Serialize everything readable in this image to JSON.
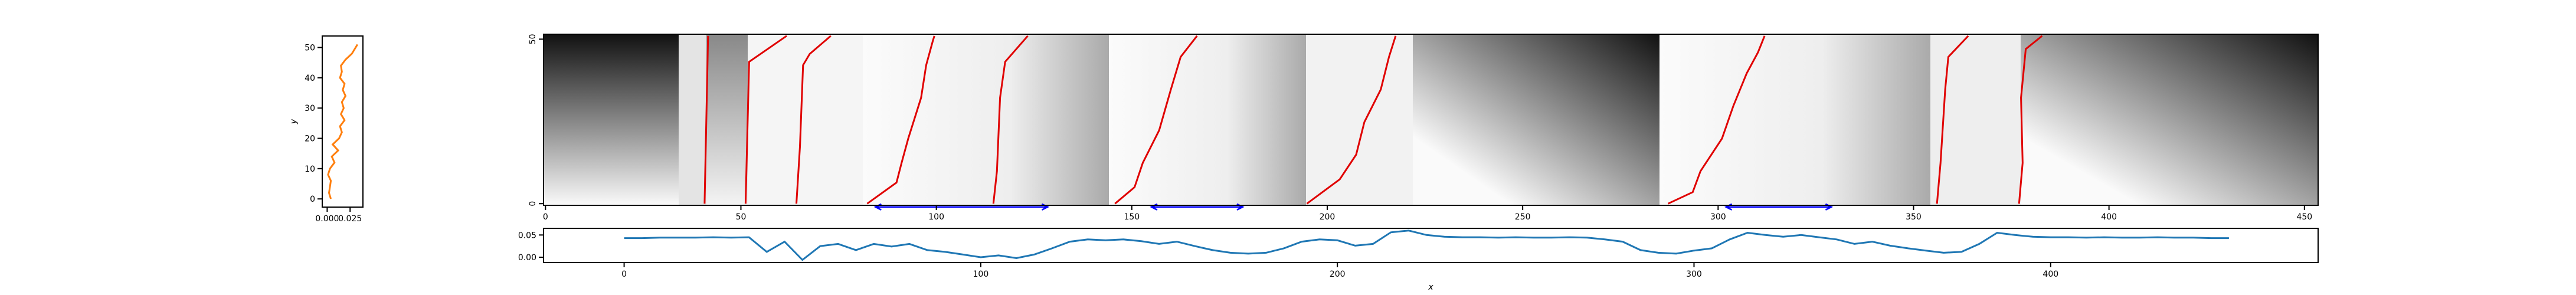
{
  "chart_data": [
    {
      "type": "line",
      "ylabel": "y",
      "xlim": [
        -0.0054,
        0.039
      ],
      "ylim": [
        -2.7,
        53.8
      ],
      "xticks": [
        {
          "value": 0,
          "label": "0.000"
        },
        {
          "value": 0.025,
          "label": "0.025"
        }
      ],
      "yticks": [
        0,
        10,
        20,
        30,
        40,
        50
      ],
      "series": [
        {
          "color": "#ff7f0e",
          "x": [
            0.004,
            0.002,
            0.003,
            0.004,
            0.001,
            0.003,
            0.008,
            0.005,
            0.012,
            0.006,
            0.013,
            0.016,
            0.014,
            0.019,
            0.015,
            0.018,
            0.016,
            0.02,
            0.017,
            0.019,
            0.014,
            0.016,
            0.015,
            0.02,
            0.027,
            0.031,
            0.033
          ],
          "values": [
            0,
            2,
            4,
            6,
            8,
            10,
            12,
            14,
            16,
            18,
            20,
            22,
            24,
            26,
            28,
            30,
            32,
            34,
            36,
            38,
            40,
            42,
            44,
            46,
            48,
            50,
            51
          ]
        }
      ]
    },
    {
      "type": "heatmap",
      "xlim": [
        -0.5,
        453.5
      ],
      "ylim": [
        -0.5,
        51.5
      ],
      "xticks": [
        0,
        50,
        100,
        150,
        200,
        250,
        300,
        350,
        400,
        450
      ],
      "yticks": [
        0,
        50
      ],
      "line_color": "#e00000",
      "lines": [
        {
          "x": [
            40.7,
            41.6
          ],
          "y": [
            0,
            51
          ]
        },
        {
          "x": [
            51.2,
            52.1,
            61.7
          ],
          "y": [
            0,
            43.1,
            51
          ]
        },
        {
          "x": [
            64.2,
            65.1,
            65.9,
            67.6,
            73.0
          ],
          "y": [
            0,
            17.3,
            42.1,
            45.5,
            51
          ]
        },
        {
          "x": [
            82.3,
            89.8,
            91.1,
            92.8,
            96.1,
            97.4,
            99.1,
            99.5
          ],
          "y": [
            0,
            6.4,
            12.4,
            19.8,
            32.2,
            42.1,
            49.5,
            51
          ]
        },
        {
          "x": [
            114.6,
            115.5,
            116.3,
            117.6,
            123.4
          ],
          "y": [
            0,
            9.9,
            32.2,
            43.1,
            51
          ]
        },
        {
          "x": [
            145.7,
            150.7,
            152.8,
            157.0,
            160.0,
            162.5,
            166.7
          ],
          "y": [
            0,
            5,
            12.4,
            22.3,
            34.7,
            44.6,
            51
          ]
        },
        {
          "x": [
            194.8,
            203.2,
            207.4,
            209.5,
            213.7,
            215.8,
            217.5
          ],
          "y": [
            0,
            7.4,
            14.9,
            24.8,
            34.7,
            44.6,
            51
          ]
        },
        {
          "x": [
            287.2,
            293.5,
            295.5,
            301.0,
            303.9,
            307.3,
            310.2,
            311.9
          ],
          "y": [
            0,
            3.5,
            9.9,
            19.8,
            29.7,
            39.6,
            46,
            51
          ]
        },
        {
          "x": [
            356.0,
            356.9,
            358.1,
            358.9,
            364.0
          ],
          "y": [
            0,
            12.4,
            34.7,
            44.6,
            51
          ]
        },
        {
          "x": [
            377.0,
            377.9,
            377.5,
            378.7,
            382.9
          ],
          "y": [
            0,
            12.4,
            32.2,
            47,
            51
          ]
        }
      ],
      "arrow_color": "#0000ff",
      "arrows": [
        {
          "x": [
            84.4,
            128.5
          ],
          "y": -1
        },
        {
          "x": [
            155,
            178.4
          ],
          "y": -1
        },
        {
          "x": [
            302,
            329
          ],
          "y": -1
        }
      ]
    },
    {
      "type": "line",
      "xlabel": "x",
      "xlim": [
        -22.6,
        475
      ],
      "ylim": [
        -0.012,
        0.065
      ],
      "xticks": [
        0,
        100,
        200,
        300,
        400
      ],
      "yticks": [
        {
          "value": 0,
          "label": "0.00"
        },
        {
          "value": 0.05,
          "label": "0.05"
        }
      ],
      "x": [
        0,
        5,
        10,
        15,
        20,
        25,
        30,
        35,
        40,
        45,
        50,
        55,
        60,
        65,
        70,
        75,
        80,
        85,
        90,
        95,
        100,
        105,
        110,
        115,
        120,
        125,
        130,
        135,
        140,
        145,
        150,
        155,
        160,
        165,
        170,
        175,
        180,
        185,
        190,
        195,
        200,
        205,
        210,
        215,
        220,
        225,
        230,
        235,
        240,
        245,
        250,
        255,
        260,
        265,
        270,
        275,
        280,
        285,
        290,
        295,
        300,
        305,
        310,
        315,
        320,
        325,
        330,
        335,
        340,
        345,
        350,
        355,
        360,
        365,
        370,
        375,
        380,
        385,
        390,
        395,
        400,
        405,
        410,
        415,
        420,
        425,
        430,
        435,
        440,
        445,
        450
      ],
      "series": [
        {
          "color": "#1f77b4",
          "values": [
            0.043,
            0.043,
            0.044,
            0.044,
            0.044,
            0.045,
            0.044,
            0.045,
            0.012,
            0.035,
            -0.006,
            0.025,
            0.03,
            0.016,
            0.03,
            0.024,
            0.03,
            0.016,
            0.012,
            0.006,
            0.0,
            0.004,
            -0.002,
            0.006,
            0.02,
            0.035,
            0.04,
            0.038,
            0.04,
            0.036,
            0.03,
            0.035,
            0.025,
            0.016,
            0.01,
            0.008,
            0.01,
            0.02,
            0.035,
            0.04,
            0.038,
            0.026,
            0.03,
            0.056,
            0.06,
            0.05,
            0.046,
            0.045,
            0.045,
            0.044,
            0.045,
            0.044,
            0.044,
            0.045,
            0.044,
            0.04,
            0.035,
            0.016,
            0.01,
            0.008,
            0.015,
            0.02,
            0.04,
            0.055,
            0.05,
            0.046,
            0.05,
            0.045,
            0.04,
            0.03,
            0.035,
            0.026,
            0.02,
            0.015,
            0.01,
            0.012,
            0.03,
            0.055,
            0.05,
            0.046,
            0.045,
            0.045,
            0.044,
            0.045,
            0.044,
            0.044,
            0.045,
            0.044,
            0.044,
            0.043,
            0.043
          ]
        }
      ]
    }
  ]
}
